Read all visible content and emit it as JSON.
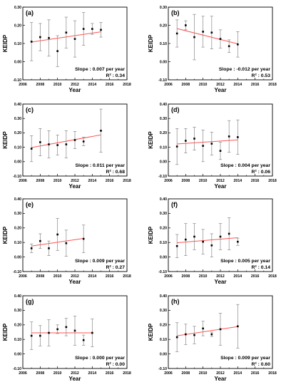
{
  "chart_data": [
    {
      "type": "scatter",
      "label": "(a)",
      "xlabel": "Year",
      "ylabel": "KEIDP",
      "xlim": [
        2006,
        2018
      ],
      "ylim": [
        -0.1,
        0.3
      ],
      "xticks": [
        2006,
        2008,
        2010,
        2012,
        2014,
        2016,
        2018
      ],
      "yticks": [
        -0.1,
        0.0,
        0.1,
        0.2,
        0.3
      ],
      "points": [
        {
          "x": 2007,
          "y": 0.11,
          "err": 0.105
        },
        {
          "x": 2008,
          "y": 0.135,
          "err": 0.075
        },
        {
          "x": 2009,
          "y": 0.13,
          "err": 0.1
        },
        {
          "x": 2010,
          "y": 0.058,
          "err": 0.085
        },
        {
          "x": 2011,
          "y": 0.16,
          "err": 0.085
        },
        {
          "x": 2012,
          "y": 0.125,
          "err": 0.1
        },
        {
          "x": 2013,
          "y": 0.18,
          "err": 0.09
        },
        {
          "x": 2014,
          "y": 0.18,
          "err": 0.03
        },
        {
          "x": 2015,
          "y": 0.175,
          "err": 0.04
        }
      ],
      "trend": {
        "x": [
          2007,
          2015
        ],
        "y": [
          0.108,
          0.164
        ],
        "color": "#ff5555"
      },
      "slope_text": "Slope : 0.007 per year",
      "r2_text": "R² : 0.34"
    },
    {
      "type": "scatter",
      "label": "(b)",
      "xlabel": "Year",
      "ylabel": "KEIDP",
      "xlim": [
        2006,
        2018
      ],
      "ylim": [
        -0.1,
        0.3
      ],
      "xticks": [
        2006,
        2008,
        2010,
        2012,
        2014,
        2016,
        2018
      ],
      "yticks": [
        -0.1,
        0.0,
        0.1,
        0.2,
        0.3
      ],
      "points": [
        {
          "x": 2007,
          "y": 0.155,
          "err": 0.075
        },
        {
          "x": 2008,
          "y": 0.2,
          "err": 0.025
        },
        {
          "x": 2009,
          "y": 0.135,
          "err": 0.125
        },
        {
          "x": 2010,
          "y": 0.165,
          "err": 0.085
        },
        {
          "x": 2011,
          "y": 0.16,
          "err": 0.09
        },
        {
          "x": 2012,
          "y": 0.125,
          "err": 0.05
        },
        {
          "x": 2013,
          "y": 0.085,
          "err": 0.035
        },
        {
          "x": 2014,
          "y": 0.095,
          "err": 0.07
        }
      ],
      "trend": {
        "x": [
          2007,
          2014
        ],
        "y": [
          0.182,
          0.098
        ],
        "color": "#ff5555"
      },
      "slope_text": "Slope : -0.012 per year",
      "r2_text": "R² : 0.53"
    },
    {
      "type": "scatter",
      "label": "(c)",
      "xlabel": "Year",
      "ylabel": "KEIDP",
      "xlim": [
        2006,
        2018
      ],
      "ylim": [
        -0.1,
        0.4
      ],
      "xticks": [
        2006,
        2008,
        2010,
        2012,
        2014,
        2016,
        2018
      ],
      "yticks": [
        -0.1,
        0.0,
        0.1,
        0.2,
        0.3,
        0.4
      ],
      "points": [
        {
          "x": 2007,
          "y": 0.09,
          "err": 0.09
        },
        {
          "x": 2008,
          "y": 0.135,
          "err": 0.095
        },
        {
          "x": 2009,
          "y": 0.12,
          "err": 0.095
        },
        {
          "x": 2010,
          "y": 0.115,
          "err": 0.07
        },
        {
          "x": 2011,
          "y": 0.12,
          "err": 0.095
        },
        {
          "x": 2012,
          "y": 0.15,
          "err": 0.06
        },
        {
          "x": 2013,
          "y": 0.14,
          "err": 0.03
        },
        {
          "x": 2015,
          "y": 0.215,
          "err": 0.15
        }
      ],
      "trend": {
        "x": [
          2007,
          2015
        ],
        "y": [
          0.098,
          0.186
        ],
        "color": "#ff5555"
      },
      "slope_text": "Slope : 0.011 per year",
      "r2_text": "R² : 0.68"
    },
    {
      "type": "scatter",
      "label": "(d)",
      "xlabel": "Year",
      "ylabel": "KEIDP",
      "xlim": [
        2006,
        2018
      ],
      "ylim": [
        -0.1,
        0.4
      ],
      "xticks": [
        2006,
        2008,
        2010,
        2012,
        2014,
        2016,
        2018
      ],
      "yticks": [
        -0.1,
        0.0,
        0.1,
        0.2,
        0.3,
        0.4
      ],
      "points": [
        {
          "x": 2007,
          "y": 0.105,
          "err": 0.125
        },
        {
          "x": 2008,
          "y": 0.145,
          "err": 0.085
        },
        {
          "x": 2009,
          "y": 0.16,
          "err": 0.08
        },
        {
          "x": 2010,
          "y": 0.11,
          "err": 0.11
        },
        {
          "x": 2011,
          "y": 0.125,
          "err": 0.08
        },
        {
          "x": 2012,
          "y": 0.075,
          "err": 0.06
        },
        {
          "x": 2013,
          "y": 0.175,
          "err": 0.11
        },
        {
          "x": 2014,
          "y": 0.17,
          "err": 0.12
        }
      ],
      "trend": {
        "x": [
          2007,
          2014
        ],
        "y": [
          0.123,
          0.151
        ],
        "color": "#ff5555"
      },
      "slope_text": "Slope : 0.004 per year",
      "r2_text": "R² : 0.06"
    },
    {
      "type": "scatter",
      "label": "(e)",
      "xlabel": "Year",
      "ylabel": "KEIDP",
      "xlim": [
        2006,
        2018
      ],
      "ylim": [
        -0.1,
        0.4
      ],
      "xticks": [
        2006,
        2008,
        2010,
        2012,
        2014,
        2016,
        2018
      ],
      "yticks": [
        -0.1,
        0.0,
        0.1,
        0.2,
        0.3,
        0.4
      ],
      "points": [
        {
          "x": 2007,
          "y": 0.06,
          "err": 0.03
        },
        {
          "x": 2008,
          "y": 0.11,
          "err": 0.05
        },
        {
          "x": 2009,
          "y": 0.06,
          "err": 0.05
        },
        {
          "x": 2010,
          "y": 0.155,
          "err": 0.11
        },
        {
          "x": 2011,
          "y": 0.095,
          "err": 0.09
        },
        {
          "x": 2013,
          "y": 0.125,
          "err": 0.095
        }
      ],
      "trend": {
        "x": [
          2007,
          2013
        ],
        "y": [
          0.075,
          0.128
        ],
        "color": "#ff5555"
      },
      "slope_text": "Slope : 0.009 per year",
      "r2_text": "R² : 0.27"
    },
    {
      "type": "scatter",
      "label": "(f)",
      "xlabel": "Year",
      "ylabel": "KEIDP",
      "xlim": [
        2006,
        2018
      ],
      "ylim": [
        -0.1,
        0.4
      ],
      "xticks": [
        2006,
        2008,
        2010,
        2012,
        2014,
        2016,
        2018
      ],
      "yticks": [
        -0.1,
        0.0,
        0.1,
        0.2,
        0.3,
        0.4
      ],
      "points": [
        {
          "x": 2007,
          "y": 0.075,
          "err": 0.08
        },
        {
          "x": 2008,
          "y": 0.12,
          "err": 0.11
        },
        {
          "x": 2009,
          "y": 0.14,
          "err": 0.09
        },
        {
          "x": 2010,
          "y": 0.105,
          "err": 0.085
        },
        {
          "x": 2011,
          "y": 0.08,
          "err": 0.08
        },
        {
          "x": 2012,
          "y": 0.14,
          "err": 0.09
        },
        {
          "x": 2013,
          "y": 0.16,
          "err": 0.11
        },
        {
          "x": 2014,
          "y": 0.105,
          "err": 0.025
        }
      ],
      "trend": {
        "x": [
          2007,
          2014
        ],
        "y": [
          0.098,
          0.133
        ],
        "color": "#ff5555"
      },
      "slope_text": "Slope : 0.005 per year",
      "r2_text": "R² : 0.14"
    },
    {
      "type": "scatter",
      "label": "(g)",
      "xlabel": "Year",
      "ylabel": "KEIDP",
      "xlim": [
        2006,
        2018
      ],
      "ylim": [
        -0.1,
        0.4
      ],
      "xticks": [
        2006,
        2008,
        2010,
        2012,
        2014,
        2016,
        2018
      ],
      "yticks": [
        -0.1,
        0.0,
        0.1,
        0.2,
        0.3,
        0.4
      ],
      "points": [
        {
          "x": 2007,
          "y": 0.125,
          "err": 0.095
        },
        {
          "x": 2008,
          "y": 0.125,
          "err": 0.07
        },
        {
          "x": 2009,
          "y": 0.145,
          "err": 0.09
        },
        {
          "x": 2010,
          "y": 0.17,
          "err": 0.03
        },
        {
          "x": 2011,
          "y": 0.185,
          "err": 0.06
        },
        {
          "x": 2012,
          "y": 0.16,
          "err": 0.1
        },
        {
          "x": 2013,
          "y": 0.095,
          "err": 0.035
        },
        {
          "x": 2014,
          "y": 0.145,
          "err": 0.095
        }
      ],
      "trend": {
        "x": [
          2007,
          2014
        ],
        "y": [
          0.145,
          0.145
        ],
        "color": "#ff5555"
      },
      "slope_text": "Slope : 0.000 per year",
      "r2_text": "R² : 0.00"
    },
    {
      "type": "scatter",
      "label": "(h)",
      "xlabel": "Year",
      "ylabel": "KEIDP",
      "xlim": [
        2006,
        2018
      ],
      "ylim": [
        -0.1,
        0.4
      ],
      "xticks": [
        2006,
        2008,
        2010,
        2012,
        2014,
        2016,
        2018
      ],
      "yticks": [
        -0.1,
        0.0,
        0.1,
        0.2,
        0.3,
        0.4
      ],
      "points": [
        {
          "x": 2007,
          "y": 0.115,
          "err": 0.1
        },
        {
          "x": 2008,
          "y": 0.135,
          "err": 0.07
        },
        {
          "x": 2009,
          "y": 0.13,
          "err": 0.06
        },
        {
          "x": 2010,
          "y": 0.175,
          "err": 0.05
        },
        {
          "x": 2011,
          "y": 0.135,
          "err": 0.015
        },
        {
          "x": 2012,
          "y": 0.17,
          "err": 0.11
        },
        {
          "x": 2014,
          "y": 0.19,
          "err": 0.15
        }
      ],
      "trend": {
        "x": [
          2007,
          2014
        ],
        "y": [
          0.125,
          0.188
        ],
        "color": "#ff5555"
      },
      "slope_text": "Slope : 0.009 per year",
      "r2_text": "R² : 0.60"
    }
  ]
}
